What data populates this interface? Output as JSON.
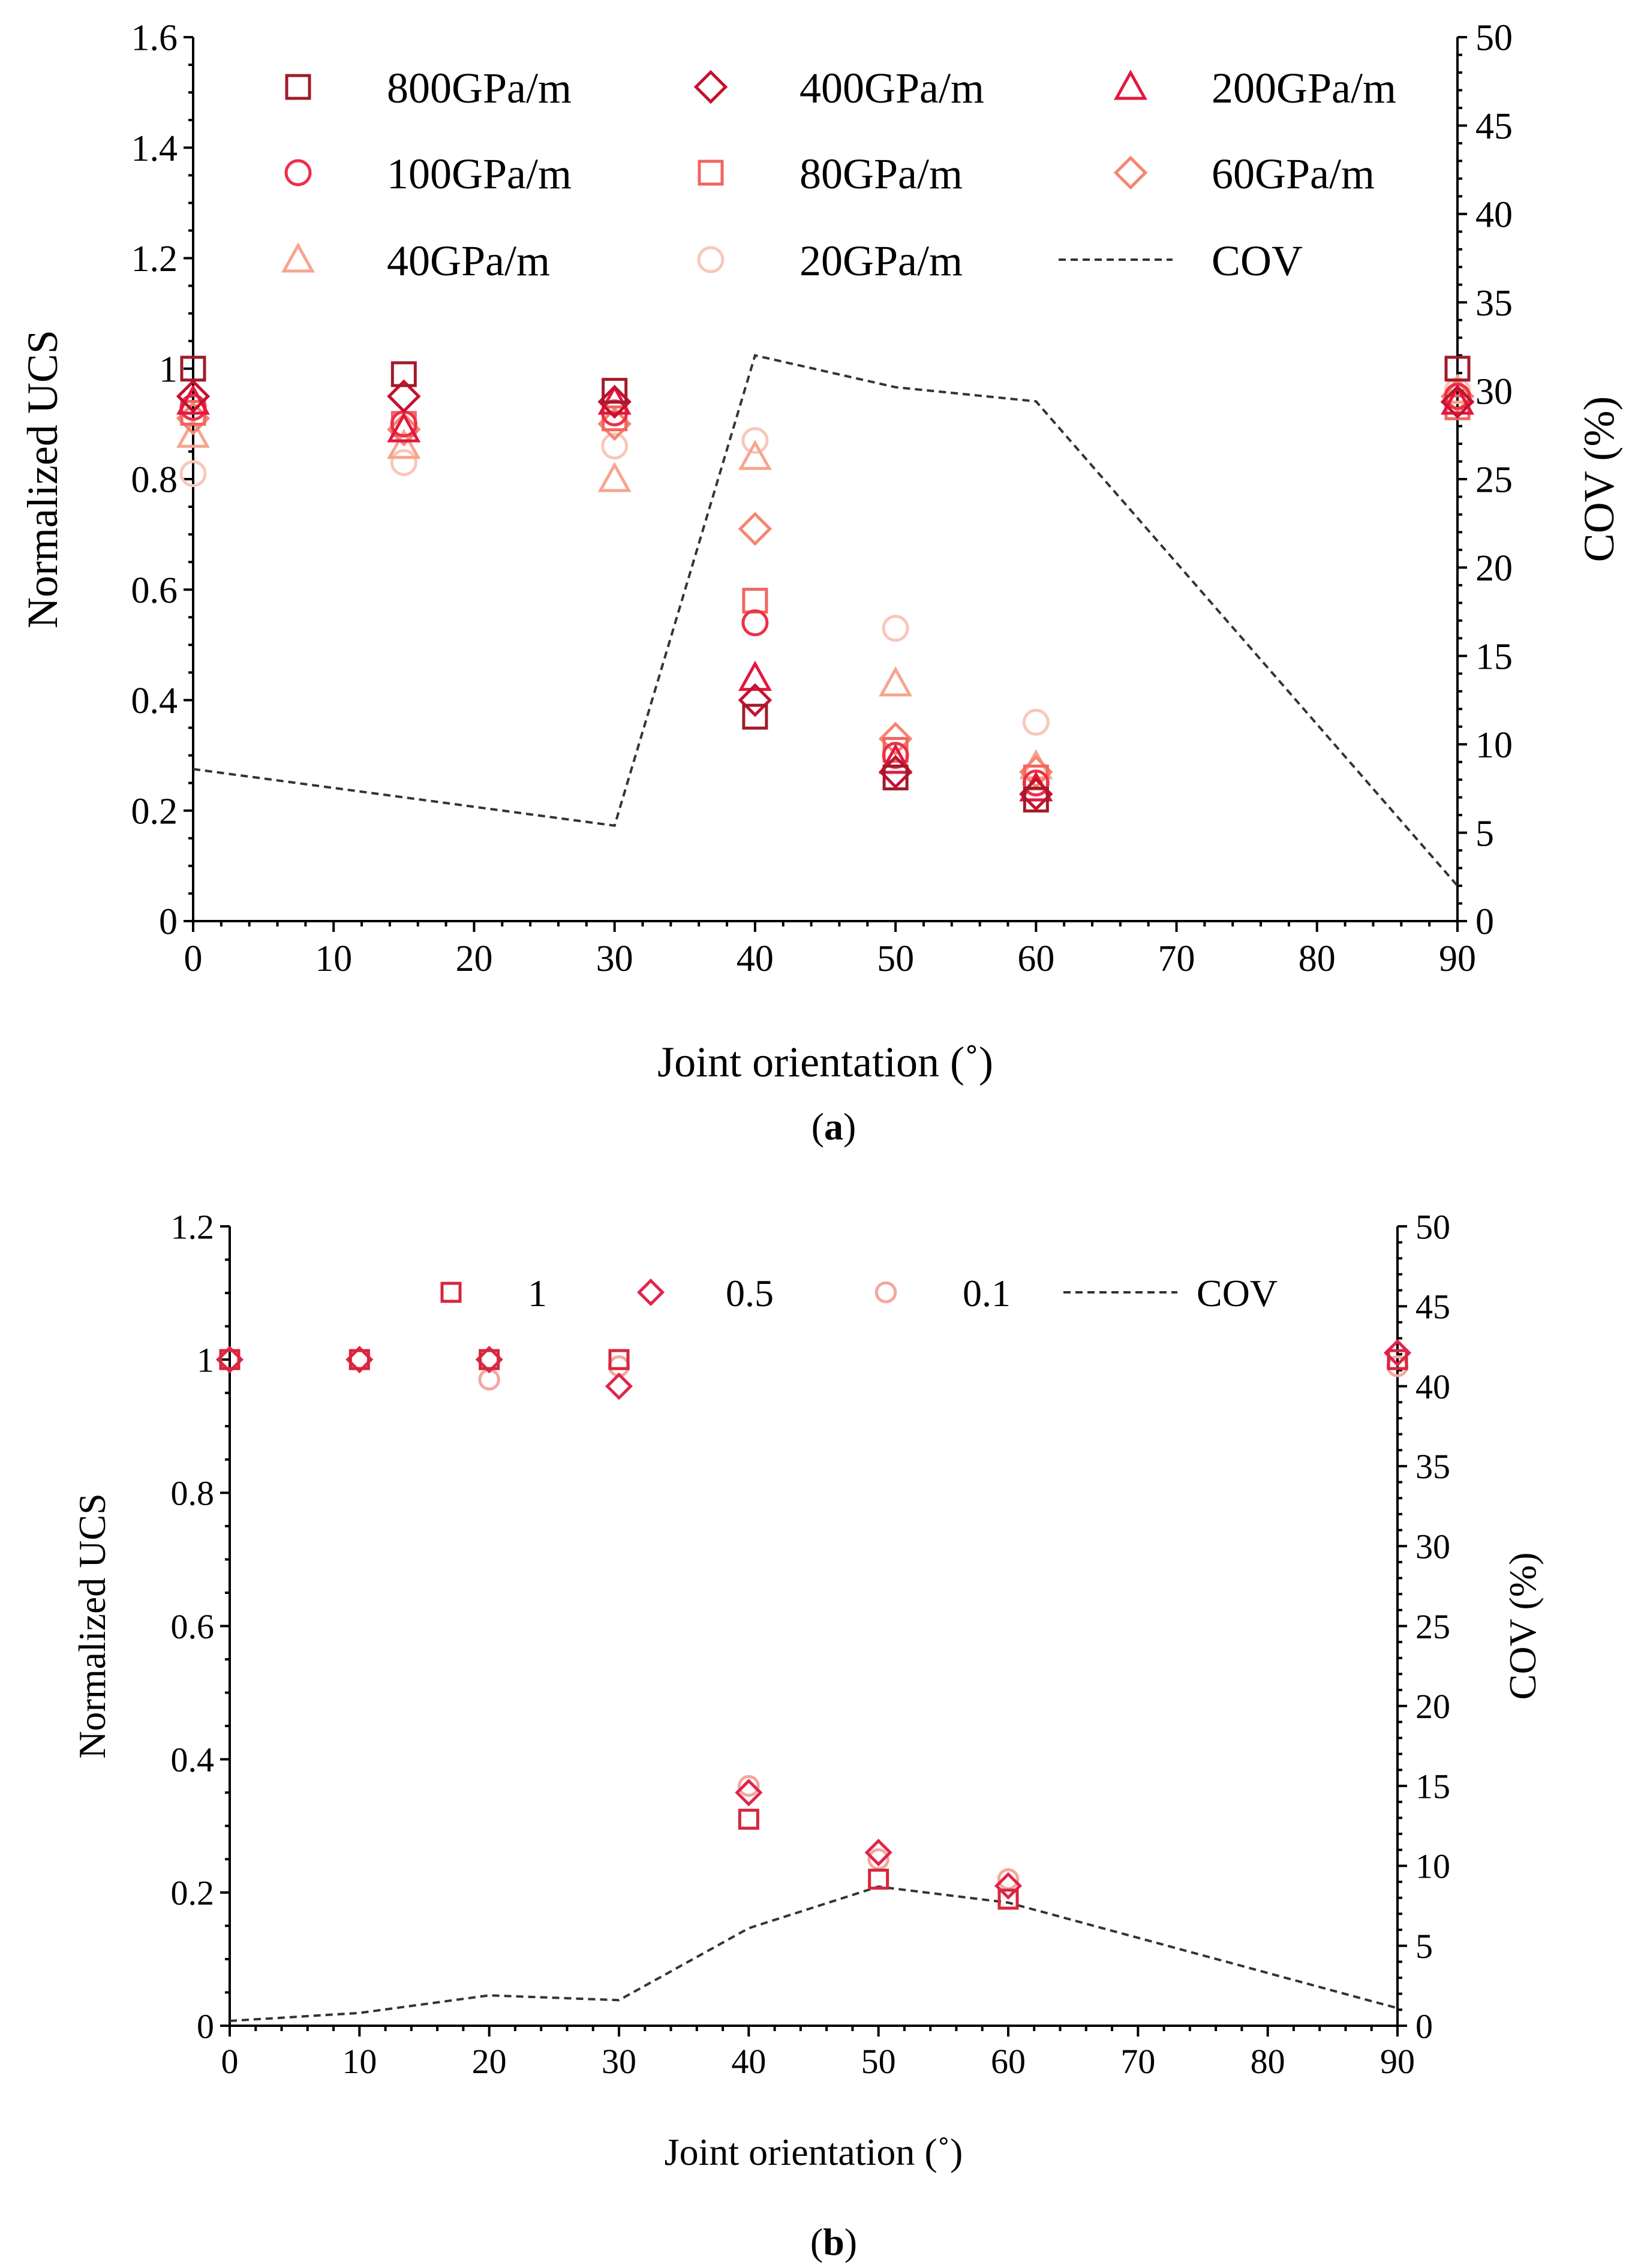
{
  "chart_data": [
    {
      "type": "scatter",
      "panel": "a",
      "caption_letter": "a",
      "xlabel": "Joint orientation (˚)",
      "ylabel": "Normalized UCS",
      "y2label": "COV (%)",
      "xlim": [
        0,
        90
      ],
      "ylim": [
        0,
        1.6
      ],
      "y2lim": [
        0,
        50
      ],
      "xticks": [
        "0",
        "10",
        "20",
        "30",
        "40",
        "50",
        "60",
        "70",
        "80",
        "90"
      ],
      "yticks": [
        "0",
        "0.2",
        "0.4",
        "0.6",
        "0.8",
        "1",
        "1.2",
        "1.4",
        "1.6"
      ],
      "y2ticks": [
        "0",
        "5",
        "10",
        "15",
        "20",
        "25",
        "30",
        "35",
        "40",
        "45",
        "50"
      ],
      "x": [
        0,
        15,
        30,
        40,
        50,
        60,
        90
      ],
      "series": [
        {
          "name": "800GPa/m",
          "marker": "square",
          "color": "#A11B2B",
          "values": [
            1.0,
            0.99,
            0.96,
            0.37,
            0.26,
            0.22,
            1.0
          ]
        },
        {
          "name": "400GPa/m",
          "marker": "diamond",
          "color": "#C4122F",
          "values": [
            0.95,
            0.95,
            0.94,
            0.4,
            0.27,
            0.23,
            0.94
          ]
        },
        {
          "name": "200GPa/m",
          "marker": "triangle",
          "color": "#E3173F",
          "values": [
            0.94,
            0.89,
            0.94,
            0.44,
            0.29,
            0.24,
            0.94
          ]
        },
        {
          "name": "100GPa/m",
          "marker": "circle",
          "color": "#EE2F48",
          "values": [
            0.93,
            0.9,
            0.92,
            0.54,
            0.3,
            0.25,
            0.95
          ]
        },
        {
          "name": "80GPa/m",
          "marker": "square",
          "color": "#F26560",
          "values": [
            0.92,
            0.9,
            0.91,
            0.58,
            0.31,
            0.26,
            0.93
          ]
        },
        {
          "name": "60GPa/m",
          "marker": "diamond",
          "color": "#F4866F",
          "values": [
            0.91,
            0.89,
            0.9,
            0.71,
            0.33,
            0.27,
            0.95
          ]
        },
        {
          "name": "40GPa/m",
          "marker": "triangle",
          "color": "#F6A58F",
          "values": [
            0.88,
            0.86,
            0.8,
            0.84,
            0.43,
            0.28,
            0.96
          ]
        },
        {
          "name": "20GPa/m",
          "marker": "circle",
          "color": "#F8C7BA",
          "values": [
            0.81,
            0.83,
            0.86,
            0.87,
            0.53,
            0.36,
            0.96
          ]
        }
      ],
      "cov": {
        "name": "COV",
        "x": [
          0,
          30,
          40,
          50,
          60,
          90
        ],
        "values": [
          8.6,
          5.4,
          32.0,
          30.2,
          29.4,
          2.0
        ]
      }
    },
    {
      "type": "scatter",
      "panel": "b",
      "caption_letter": "b",
      "xlabel": "Joint orientation (˚)",
      "ylabel": "Normalized UCS",
      "y2label": "COV (%)",
      "xlim": [
        0,
        90
      ],
      "ylim": [
        0,
        1.2
      ],
      "y2lim": [
        0,
        50
      ],
      "xticks": [
        "0",
        "10",
        "20",
        "30",
        "40",
        "50",
        "60",
        "70",
        "80",
        "90"
      ],
      "yticks": [
        "0",
        "0.2",
        "0.4",
        "0.6",
        "0.8",
        "1",
        "1.2"
      ],
      "y2ticks": [
        "0",
        "5",
        "10",
        "15",
        "20",
        "25",
        "30",
        "35",
        "40",
        "45",
        "50"
      ],
      "x": [
        0,
        10,
        20,
        30,
        40,
        50,
        60,
        90
      ],
      "series": [
        {
          "name": "1",
          "marker": "square",
          "color": "#D7263D",
          "values": [
            1.0,
            1.0,
            1.0,
            1.0,
            0.31,
            0.22,
            0.19,
            1.0
          ]
        },
        {
          "name": "0.5",
          "marker": "diamond",
          "color": "#E0254A",
          "values": [
            1.0,
            1.0,
            1.0,
            0.96,
            0.35,
            0.26,
            0.21,
            1.01
          ]
        },
        {
          "name": "0.1",
          "marker": "circle",
          "color": "#F4A7A0",
          "values": [
            1.0,
            1.0,
            0.97,
            0.99,
            0.36,
            0.25,
            0.22,
            0.99
          ]
        }
      ],
      "cov": {
        "name": "COV",
        "x": [
          0,
          10,
          20,
          30,
          40,
          50,
          60,
          90
        ],
        "values": [
          0.3,
          0.8,
          1.9,
          1.6,
          6.1,
          8.7,
          7.7,
          1.1
        ]
      }
    }
  ]
}
